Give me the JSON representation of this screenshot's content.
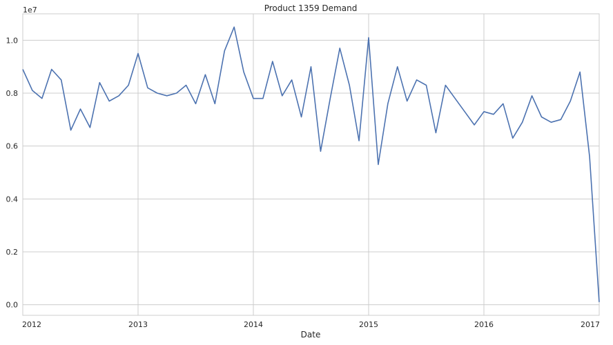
{
  "chart_data": {
    "type": "line",
    "title": "Product 1359 Demand",
    "xlabel": "Date",
    "ylabel": "",
    "y_offset_label": "1e7",
    "ylim": [
      -0.04,
      1.1
    ],
    "grid": true,
    "x_ticks": [
      "2012",
      "2013",
      "2014",
      "2015",
      "2016",
      "2017"
    ],
    "y_ticks": [
      "0.0",
      "0.2",
      "0.4",
      "0.6",
      "0.8",
      "1.0"
    ],
    "y_tick_values": [
      0.0,
      0.2,
      0.4,
      0.6,
      0.8,
      1.0
    ],
    "series": [
      {
        "color": "#4c72b0",
        "x": [
          "2012-01",
          "2012-02",
          "2012-03",
          "2012-04",
          "2012-05",
          "2012-06",
          "2012-07",
          "2012-08",
          "2012-09",
          "2012-10",
          "2012-11",
          "2012-12",
          "2013-01",
          "2013-02",
          "2013-03",
          "2013-04",
          "2013-05",
          "2013-06",
          "2013-07",
          "2013-08",
          "2013-09",
          "2013-10",
          "2013-11",
          "2013-12",
          "2014-01",
          "2014-02",
          "2014-03",
          "2014-04",
          "2014-05",
          "2014-06",
          "2014-07",
          "2014-08",
          "2014-09",
          "2014-10",
          "2014-11",
          "2014-12",
          "2015-01",
          "2015-02",
          "2015-03",
          "2015-04",
          "2015-05",
          "2015-06",
          "2015-07",
          "2015-08",
          "2015-09",
          "2015-10",
          "2015-11",
          "2015-12",
          "2016-01",
          "2016-02",
          "2016-03",
          "2016-04",
          "2016-05",
          "2016-06",
          "2016-07",
          "2016-08",
          "2016-09",
          "2016-10",
          "2016-11",
          "2016-12",
          "2017-01"
        ],
        "values": [
          0.89,
          0.81,
          0.78,
          0.89,
          0.85,
          0.66,
          0.74,
          0.67,
          0.84,
          0.77,
          0.79,
          0.83,
          0.95,
          0.82,
          0.8,
          0.79,
          0.8,
          0.83,
          0.76,
          0.87,
          0.76,
          0.96,
          1.05,
          0.88,
          0.78,
          0.78,
          0.92,
          0.79,
          0.85,
          0.71,
          0.9,
          0.58,
          0.78,
          0.97,
          0.83,
          0.62,
          1.01,
          0.53,
          0.76,
          0.9,
          0.77,
          0.85,
          0.83,
          0.65,
          0.83,
          0.78,
          0.73,
          0.68,
          0.73,
          0.72,
          0.76,
          0.63,
          0.69,
          0.79,
          0.71,
          0.69,
          0.7,
          0.77,
          0.88,
          0.56,
          0.01
        ]
      }
    ]
  }
}
